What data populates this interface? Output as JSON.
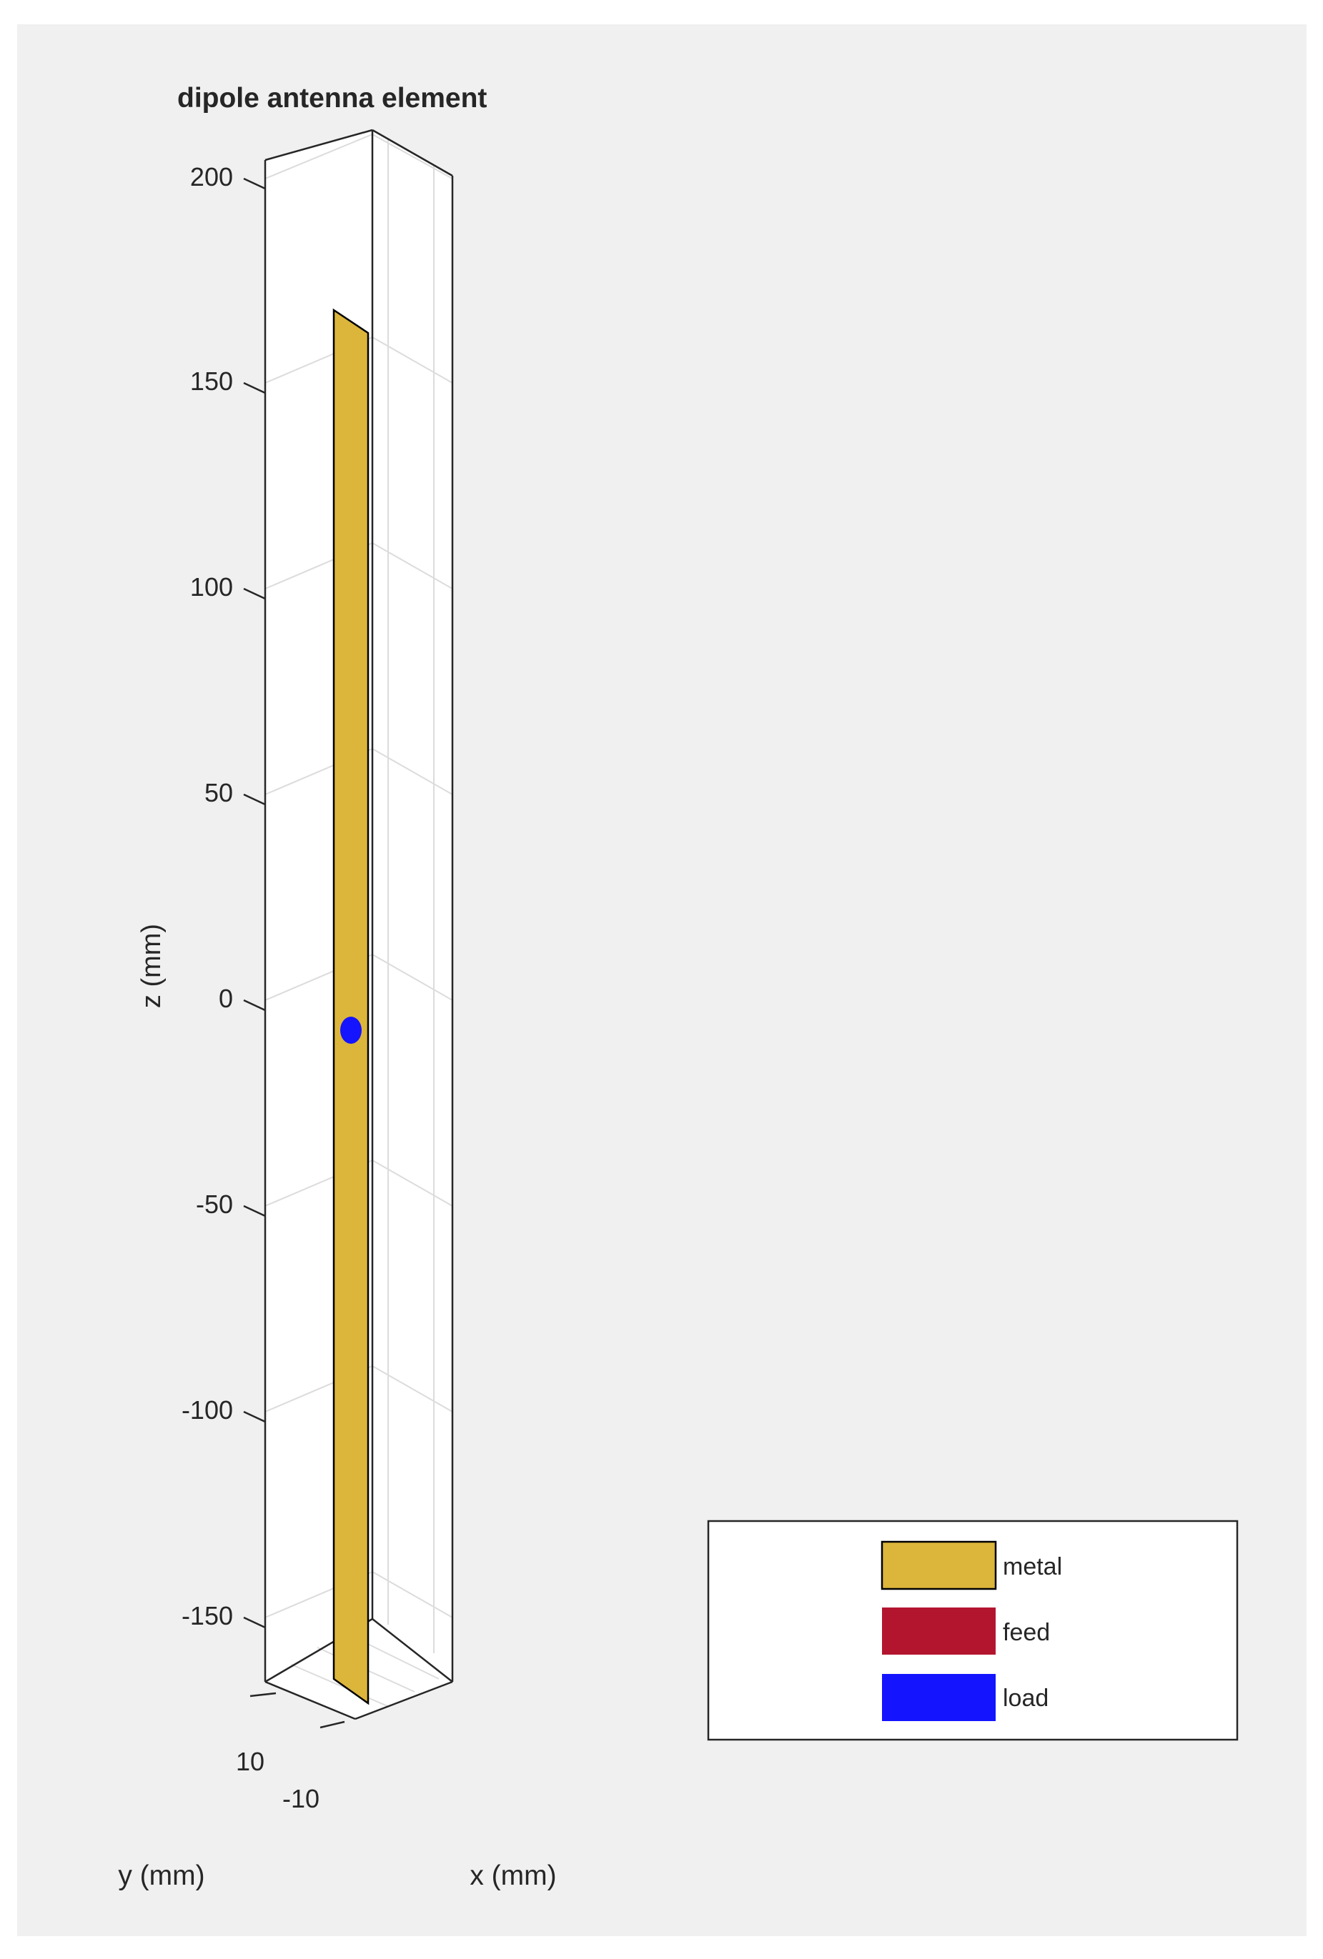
{
  "title": "dipole antenna element",
  "axes": {
    "xlabel": "x (mm)",
    "ylabel": "y (mm)",
    "zlabel": "z (mm)",
    "z_ticks": [
      "200",
      "150",
      "100",
      "50",
      "0",
      "-50",
      "-100",
      "-150"
    ],
    "y_ticks": [
      "10",
      "-10"
    ],
    "grid": true,
    "box": true
  },
  "legend": {
    "placement": "bottom-right",
    "items": [
      {
        "label": "metal",
        "color": "#dcb53b"
      },
      {
        "label": "feed",
        "color": "#b3152f"
      },
      {
        "label": "load",
        "color": "#1414ff"
      }
    ]
  },
  "colors": {
    "background": "#f0f0f0",
    "axes_face": "#ffffff",
    "metal": "#dcb53b",
    "load_marker": "#1414ff"
  }
}
